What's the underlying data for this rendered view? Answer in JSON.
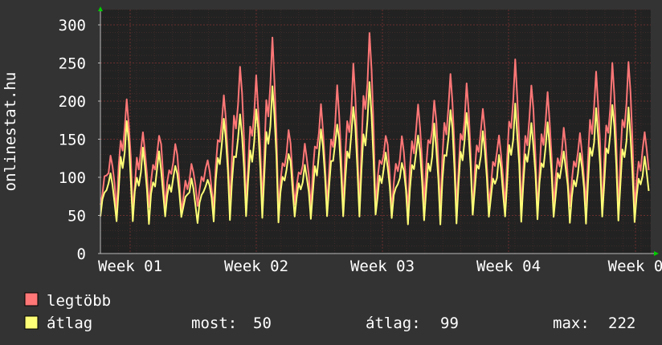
{
  "vertical_label": "onlinestat.hu",
  "legend": {
    "max_label": "legtöbb",
    "avg_label": "átlag",
    "stats": {
      "now_label": "most:",
      "now_value": "50",
      "avg_label": "átlag:",
      "avg_value": "99",
      "max_label": "max:",
      "max_value": "222"
    }
  },
  "colors": {
    "background": "#333333",
    "plot": "#222222",
    "max_series": "#ff7777",
    "avg_series": "#ffff77",
    "grid": "#5a2a2a",
    "text": "#ffffff",
    "axis_arrow": "#00cc00"
  },
  "chart_data": {
    "type": "line",
    "title": "",
    "xlabel": "",
    "ylabel": "onlinestat.hu",
    "ylim": [
      0,
      320
    ],
    "yticks": [
      0,
      50,
      100,
      150,
      200,
      250,
      300
    ],
    "grid": true,
    "legend_position": "bottom-left",
    "x_tick_labels": [
      "Week 01",
      "Week 02",
      "Week 03",
      "Week 04",
      "Week 0"
    ],
    "days": 34,
    "series": [
      {
        "name": "legtöbb",
        "daily_peaks": [
          130,
          205,
          160,
          160,
          145,
          115,
          125,
          210,
          250,
          230,
          280,
          165,
          145,
          195,
          215,
          245,
          290,
          160,
          150,
          200,
          205,
          240,
          225,
          195,
          155,
          250,
          220,
          210,
          165,
          160,
          240,
          245,
          255,
          160
        ]
      },
      {
        "name": "átlag",
        "daily_peaks": [
          105,
          170,
          135,
          130,
          120,
          95,
          100,
          175,
          185,
          190,
          222,
          135,
          120,
          160,
          175,
          195,
          222,
          130,
          120,
          160,
          165,
          190,
          185,
          160,
          125,
          195,
          175,
          170,
          135,
          130,
          190,
          195,
          190,
          130
        ]
      }
    ]
  }
}
